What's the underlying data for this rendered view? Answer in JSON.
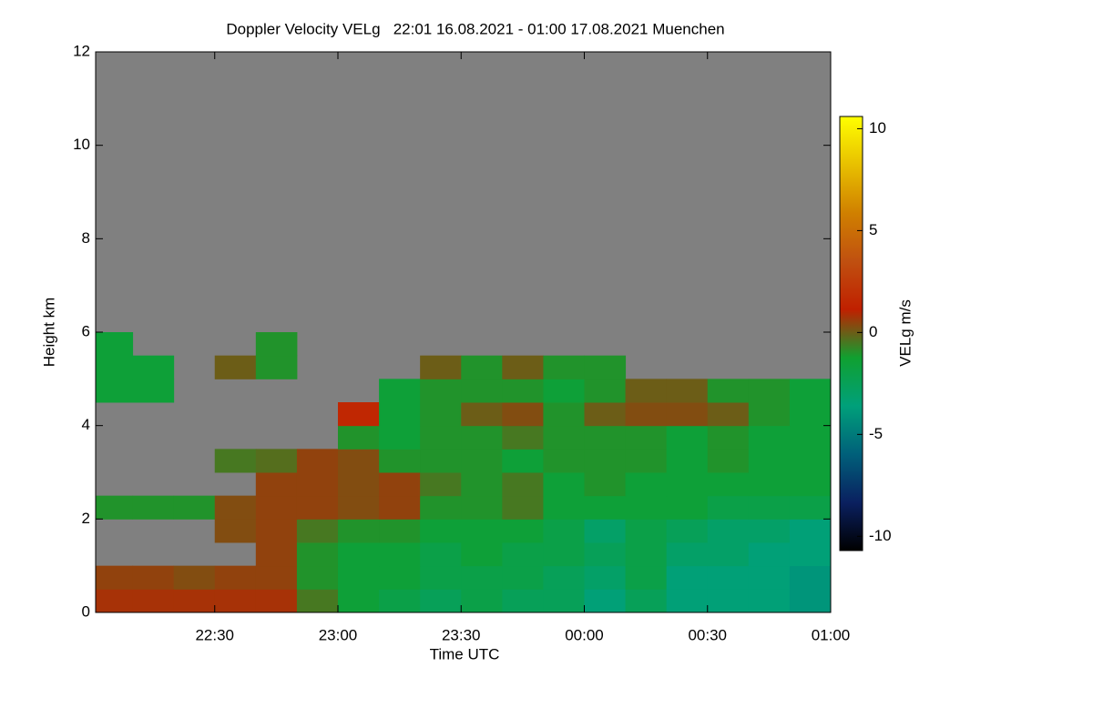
{
  "chart_data": {
    "type": "heatmap",
    "title": "Doppler Velocity VELg   22:01 16.08.2021 - 01:00 17.08.2021 Muenchen",
    "x_label": "Time UTC",
    "y_label": "Height km",
    "colorbar_label": "VELg m/s",
    "background": "#808080",
    "xlim": [
      1,
      180
    ],
    "xticks": [
      {
        "value": 30,
        "label": "22:30"
      },
      {
        "value": 60,
        "label": "23:00"
      },
      {
        "value": 90,
        "label": "23:30"
      },
      {
        "value": 120,
        "label": "00:00"
      },
      {
        "value": 150,
        "label": "00:30"
      },
      {
        "value": 180,
        "label": "01:00"
      }
    ],
    "ylim": [
      0,
      12
    ],
    "yticks": [
      0,
      2,
      4,
      6,
      8,
      10,
      12
    ],
    "clim": [
      -10.7,
      10.6
    ],
    "cticks": [
      -10,
      -5,
      0,
      5,
      10
    ],
    "colormap": [
      "#000000",
      "#0a2060",
      "#00607a",
      "#00a07a",
      "#10a030",
      "#c02000",
      "#c05010",
      "#d08000",
      "#e8c000",
      "#ffff00"
    ],
    "x_bins": [
      1,
      10,
      20,
      30,
      40,
      50,
      60,
      70,
      80,
      90,
      100,
      110,
      120,
      130,
      140,
      150,
      160,
      170,
      180
    ],
    "y_bins": [
      0,
      0.5,
      1,
      1.5,
      2,
      2.5,
      3,
      3.5,
      4,
      4.5,
      5,
      5.5,
      6
    ],
    "z": [
      [
        0.8,
        0.8,
        0.8,
        0.8,
        0.8,
        -0.5,
        -1.5,
        -2,
        -2.5,
        -2,
        -2.5,
        -2.5,
        -3.5,
        -2.5,
        -3.5,
        -3.5,
        -3.5,
        -4
      ],
      [
        0.5,
        0.5,
        0.3,
        0.5,
        0.5,
        -1,
        -1.5,
        -1.5,
        -2,
        -2,
        -2,
        -2.5,
        -3,
        -2,
        -3.5,
        -3.5,
        -3.5,
        -4
      ],
      [
        null,
        null,
        null,
        null,
        0.5,
        -1,
        -1.5,
        -1.5,
        -2,
        -1.5,
        -2,
        -2,
        -2.5,
        -2,
        -3,
        -3,
        -3.5,
        -3.5
      ],
      [
        null,
        null,
        null,
        0.3,
        0.5,
        -0.5,
        -1,
        -1,
        -1.5,
        -1.5,
        -1.5,
        -2,
        -3,
        -2,
        -2.5,
        -3,
        -3,
        -3.5
      ],
      [
        -1,
        -1,
        -1,
        0.3,
        0.5,
        0.5,
        0.3,
        0.5,
        -1,
        -1,
        -0.5,
        -1.5,
        -1.5,
        -1.5,
        -1.5,
        -2,
        -2,
        -2
      ],
      [
        null,
        null,
        null,
        null,
        0.5,
        0.5,
        0.3,
        0.5,
        -0.5,
        -1,
        -0.5,
        -1.5,
        -1,
        -1.5,
        -1.5,
        -1.5,
        -1.5,
        -1.5
      ],
      [
        null,
        null,
        null,
        -0.5,
        -0.3,
        0.5,
        0.3,
        -1,
        -1,
        -1,
        -1.5,
        -1,
        -1,
        -1,
        -1.5,
        -1,
        -1.5,
        -1.5
      ],
      [
        null,
        null,
        null,
        null,
        null,
        null,
        -1,
        -1.5,
        -1,
        -1,
        -0.5,
        -1,
        -1,
        -1,
        -1.5,
        -1,
        -1.5,
        -1.5
      ],
      [
        null,
        null,
        null,
        null,
        null,
        null,
        1.5,
        -1.5,
        -1,
        0,
        0.3,
        -1,
        0,
        0.3,
        0.3,
        0,
        -1,
        -1.5
      ],
      [
        -1.5,
        -1.5,
        null,
        null,
        null,
        null,
        null,
        -1.5,
        -1,
        -1,
        -1,
        -1.5,
        -1,
        0,
        0,
        -1,
        -1,
        -1.5
      ],
      [
        -1.5,
        -1.5,
        null,
        0,
        -1,
        null,
        null,
        null,
        0,
        -1,
        0,
        -1,
        -1,
        null,
        null,
        null,
        null,
        null
      ],
      [
        -1.5,
        null,
        null,
        null,
        -1,
        null,
        null,
        null,
        null,
        null,
        null,
        null,
        null,
        null,
        null,
        null,
        null,
        null
      ]
    ]
  }
}
